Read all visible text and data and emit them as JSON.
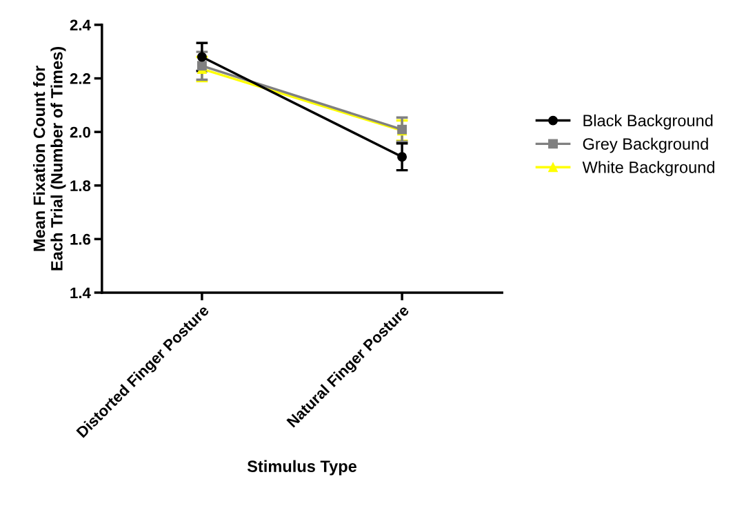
{
  "chart_data": {
    "type": "line",
    "xlabel": "Stimulus Type",
    "ylabel": "Mean Fixation Count for\nEach Trial (Number of Times)",
    "categories": [
      "Distorted Finger Posture",
      "Natural Finger Posture"
    ],
    "series": [
      {
        "name": "Black Background",
        "color": "#000000",
        "marker": "circle",
        "values": [
          2.28,
          1.907
        ],
        "errors": [
          0.052,
          0.05
        ]
      },
      {
        "name": "Grey Background",
        "color": "#808080",
        "marker": "square",
        "values": [
          2.247,
          2.009
        ],
        "errors": [
          0.052,
          0.045
        ]
      },
      {
        "name": "White Background",
        "color": "#ffff00",
        "marker": "triangle",
        "values": [
          2.235,
          2.005
        ],
        "errors": [
          0.045,
          0.038
        ]
      }
    ],
    "ylim": [
      1.4,
      2.4
    ],
    "yticks": [
      1.4,
      1.6,
      1.8,
      {
        "value": 2,
        "label": "2.0"
      },
      2.2,
      2.4
    ],
    "grid": false,
    "legend": "right"
  }
}
